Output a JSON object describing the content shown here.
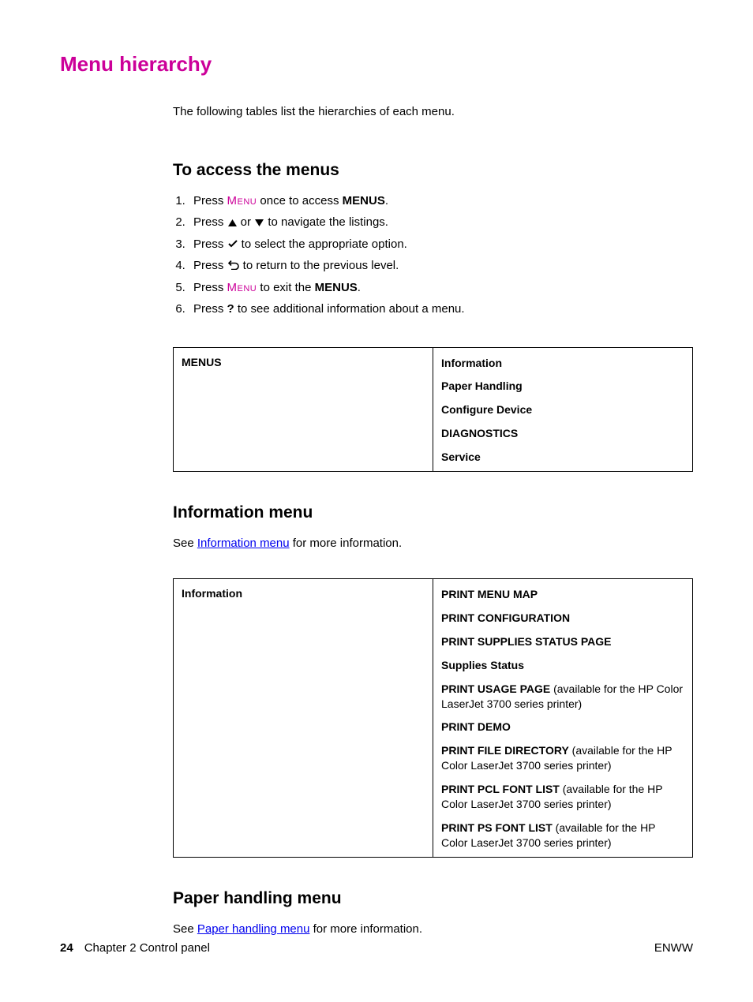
{
  "colors": {
    "accent": "#cc0099",
    "text": "#000000",
    "link": "#0000ee",
    "background": "#ffffff",
    "border": "#000000"
  },
  "typography": {
    "title_size_pt": 20,
    "section_size_pt": 16,
    "body_size_pt": 11,
    "table_size_pt": 10
  },
  "title": "Menu hierarchy",
  "intro": "The following tables list the hierarchies of each menu.",
  "access": {
    "heading": "To access the menus",
    "steps": {
      "s1_a": "Press ",
      "s1_menu": "Menu",
      "s1_b": " once to access ",
      "s1_menus": "MENUS",
      "s1_c": ".",
      "s2_a": "Press ",
      "s2_b": " or ",
      "s2_c": " to navigate the listings.",
      "s3_a": "Press ",
      "s3_b": " to select the appropriate option.",
      "s4_a": "Press ",
      "s4_b": " to return to the previous level.",
      "s5_a": "Press ",
      "s5_menu": "Menu",
      "s5_b": " to exit the ",
      "s5_menus": "MENUS",
      "s5_c": ".",
      "s6_a": "Press ",
      "s6_q": "?",
      "s6_b": " to see additional information about a menu."
    }
  },
  "menus_table": {
    "left": "MENUS",
    "right": [
      "Information",
      "Paper Handling",
      "Configure Device",
      "DIAGNOSTICS",
      "Service"
    ]
  },
  "info_section": {
    "heading": "Information menu",
    "see_a": "See ",
    "see_link": "Information menu",
    "see_b": " for more information.",
    "left": "Information",
    "items": [
      {
        "bold": "PRINT MENU MAP",
        "rest": ""
      },
      {
        "bold": "PRINT CONFIGURATION",
        "rest": ""
      },
      {
        "bold": "PRINT SUPPLIES STATUS PAGE",
        "rest": ""
      },
      {
        "bold": "Supplies Status",
        "rest": ""
      },
      {
        "bold": "PRINT USAGE PAGE",
        "rest": " (available for the HP Color LaserJet 3700 series printer)"
      },
      {
        "bold": "PRINT DEMO",
        "rest": ""
      },
      {
        "bold": "PRINT FILE DIRECTORY",
        "rest": " (available for the HP Color LaserJet 3700 series printer)"
      },
      {
        "bold": "PRINT PCL FONT LIST",
        "rest": " (available for the HP Color LaserJet 3700 series printer)"
      },
      {
        "bold": "PRINT PS FONT LIST",
        "rest": " (available for the HP Color LaserJet 3700 series printer)"
      }
    ]
  },
  "paper_section": {
    "heading": "Paper handling menu",
    "see_a": "See ",
    "see_link": "Paper handling menu",
    "see_b": " for more information."
  },
  "footer": {
    "page_number": "24",
    "chapter": "Chapter 2  Control panel",
    "right": "ENWW"
  }
}
